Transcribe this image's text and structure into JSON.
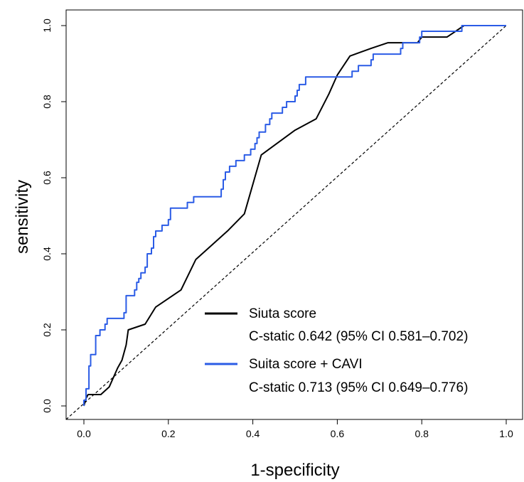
{
  "chart_data": {
    "type": "line",
    "xlabel": "1-specificity",
    "ylabel": "sensitivity",
    "xlim": [
      0,
      1
    ],
    "ylim": [
      0,
      1
    ],
    "x_ticks": [
      "0.0",
      "0.2",
      "0.4",
      "0.6",
      "0.8",
      "1.0"
    ],
    "y_ticks": [
      "0.0",
      "0.2",
      "0.4",
      "0.6",
      "0.8",
      "1.0"
    ],
    "grid": false,
    "legend_position": "bottom-right",
    "reference_line": {
      "style": "dashed",
      "color": "#000000",
      "points": [
        [
          0,
          0
        ],
        [
          1,
          1
        ]
      ]
    },
    "series": [
      {
        "name": "Siuta score",
        "stat_text": "C-static 0.642 (95% CI 0.581–0.702)",
        "color": "#000000",
        "points": [
          [
            0,
            0
          ],
          [
            0.005,
            0.02
          ],
          [
            0.01,
            0.03
          ],
          [
            0.04,
            0.03
          ],
          [
            0.06,
            0.05
          ],
          [
            0.08,
            0.1
          ],
          [
            0.09,
            0.12
          ],
          [
            0.1,
            0.16
          ],
          [
            0.105,
            0.2
          ],
          [
            0.145,
            0.215
          ],
          [
            0.17,
            0.26
          ],
          [
            0.23,
            0.305
          ],
          [
            0.265,
            0.385
          ],
          [
            0.29,
            0.41
          ],
          [
            0.34,
            0.46
          ],
          [
            0.38,
            0.505
          ],
          [
            0.42,
            0.66
          ],
          [
            0.5,
            0.725
          ],
          [
            0.55,
            0.755
          ],
          [
            0.58,
            0.82
          ],
          [
            0.6,
            0.87
          ],
          [
            0.63,
            0.92
          ],
          [
            0.68,
            0.94
          ],
          [
            0.72,
            0.955
          ],
          [
            0.79,
            0.955
          ],
          [
            0.8,
            0.97
          ],
          [
            0.86,
            0.97
          ],
          [
            0.9,
            1.0
          ],
          [
            1.0,
            1.0
          ]
        ]
      },
      {
        "name": "Suita score + CAVI",
        "stat_text": "C-static 0.713 (95% CI 0.649–0.776)",
        "color": "#2b5ce6",
        "points": [
          [
            0,
            0
          ],
          [
            0,
            0.015
          ],
          [
            0.005,
            0.015
          ],
          [
            0.005,
            0.045
          ],
          [
            0.012,
            0.045
          ],
          [
            0.012,
            0.105
          ],
          [
            0.016,
            0.105
          ],
          [
            0.016,
            0.135
          ],
          [
            0.028,
            0.135
          ],
          [
            0.028,
            0.185
          ],
          [
            0.038,
            0.185
          ],
          [
            0.038,
            0.2
          ],
          [
            0.05,
            0.2
          ],
          [
            0.05,
            0.215
          ],
          [
            0.055,
            0.215
          ],
          [
            0.055,
            0.23
          ],
          [
            0.095,
            0.23
          ],
          [
            0.095,
            0.245
          ],
          [
            0.1,
            0.245
          ],
          [
            0.1,
            0.29
          ],
          [
            0.12,
            0.29
          ],
          [
            0.12,
            0.305
          ],
          [
            0.125,
            0.305
          ],
          [
            0.125,
            0.325
          ],
          [
            0.13,
            0.325
          ],
          [
            0.13,
            0.335
          ],
          [
            0.135,
            0.335
          ],
          [
            0.135,
            0.35
          ],
          [
            0.145,
            0.35
          ],
          [
            0.145,
            0.365
          ],
          [
            0.15,
            0.365
          ],
          [
            0.15,
            0.4
          ],
          [
            0.16,
            0.4
          ],
          [
            0.16,
            0.415
          ],
          [
            0.165,
            0.415
          ],
          [
            0.165,
            0.445
          ],
          [
            0.17,
            0.445
          ],
          [
            0.17,
            0.46
          ],
          [
            0.185,
            0.46
          ],
          [
            0.185,
            0.475
          ],
          [
            0.2,
            0.475
          ],
          [
            0.2,
            0.49
          ],
          [
            0.205,
            0.49
          ],
          [
            0.205,
            0.52
          ],
          [
            0.245,
            0.52
          ],
          [
            0.245,
            0.535
          ],
          [
            0.26,
            0.535
          ],
          [
            0.26,
            0.55
          ],
          [
            0.325,
            0.55
          ],
          [
            0.325,
            0.57
          ],
          [
            0.33,
            0.57
          ],
          [
            0.33,
            0.595
          ],
          [
            0.335,
            0.595
          ],
          [
            0.335,
            0.615
          ],
          [
            0.345,
            0.615
          ],
          [
            0.345,
            0.63
          ],
          [
            0.36,
            0.63
          ],
          [
            0.36,
            0.645
          ],
          [
            0.38,
            0.645
          ],
          [
            0.38,
            0.66
          ],
          [
            0.395,
            0.66
          ],
          [
            0.395,
            0.675
          ],
          [
            0.405,
            0.675
          ],
          [
            0.405,
            0.69
          ],
          [
            0.41,
            0.69
          ],
          [
            0.41,
            0.705
          ],
          [
            0.415,
            0.705
          ],
          [
            0.415,
            0.72
          ],
          [
            0.43,
            0.72
          ],
          [
            0.43,
            0.74
          ],
          [
            0.44,
            0.74
          ],
          [
            0.44,
            0.755
          ],
          [
            0.445,
            0.755
          ],
          [
            0.445,
            0.77
          ],
          [
            0.47,
            0.77
          ],
          [
            0.47,
            0.785
          ],
          [
            0.48,
            0.785
          ],
          [
            0.48,
            0.8
          ],
          [
            0.5,
            0.8
          ],
          [
            0.5,
            0.815
          ],
          [
            0.505,
            0.815
          ],
          [
            0.505,
            0.83
          ],
          [
            0.51,
            0.83
          ],
          [
            0.51,
            0.845
          ],
          [
            0.525,
            0.845
          ],
          [
            0.525,
            0.865
          ],
          [
            0.635,
            0.865
          ],
          [
            0.635,
            0.88
          ],
          [
            0.65,
            0.88
          ],
          [
            0.65,
            0.895
          ],
          [
            0.68,
            0.895
          ],
          [
            0.68,
            0.91
          ],
          [
            0.685,
            0.91
          ],
          [
            0.685,
            0.925
          ],
          [
            0.75,
            0.925
          ],
          [
            0.75,
            0.94
          ],
          [
            0.755,
            0.94
          ],
          [
            0.755,
            0.955
          ],
          [
            0.795,
            0.955
          ],
          [
            0.795,
            0.97
          ],
          [
            0.8,
            0.97
          ],
          [
            0.8,
            0.985
          ],
          [
            0.895,
            0.985
          ],
          [
            0.895,
            1.0
          ],
          [
            1.0,
            1.0
          ]
        ]
      }
    ]
  }
}
